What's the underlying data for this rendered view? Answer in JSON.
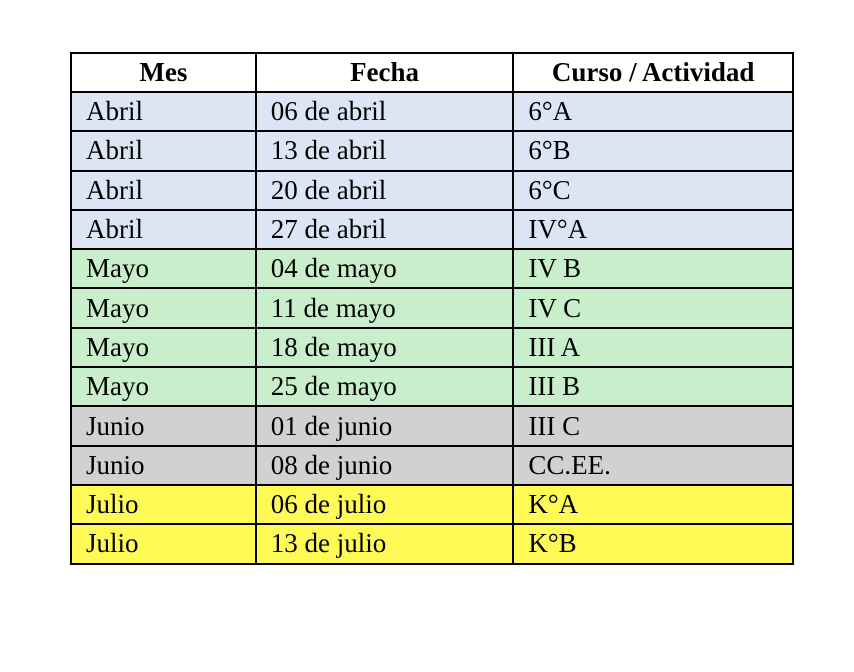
{
  "table": {
    "headers": [
      "Mes",
      "Fecha",
      "Curso / Actividad"
    ],
    "row_colors": {
      "Abril": "#dbe5f4",
      "Mayo": "#c9eecb",
      "Junio": "#d1d1d1",
      "Julio": "#fffa55"
    },
    "rows": [
      [
        "Abril",
        "06 de abril",
        "6°A"
      ],
      [
        "Abril",
        "13 de abril",
        "6°B"
      ],
      [
        "Abril",
        "20 de abril",
        "6°C"
      ],
      [
        "Abril",
        "27 de abril",
        "IV°A"
      ],
      [
        "Mayo",
        "04 de mayo",
        "IV B"
      ],
      [
        "Mayo",
        "11 de mayo",
        "IV C"
      ],
      [
        "Mayo",
        "18 de mayo",
        "III A"
      ],
      [
        "Mayo",
        "25 de mayo",
        "III B"
      ],
      [
        "Junio",
        "01 de junio",
        "III C"
      ],
      [
        "Junio",
        "08 de junio",
        "CC.EE."
      ],
      [
        "Julio",
        "06 de julio",
        "K°A"
      ],
      [
        "Julio",
        "13 de julio",
        "K°B"
      ]
    ]
  }
}
